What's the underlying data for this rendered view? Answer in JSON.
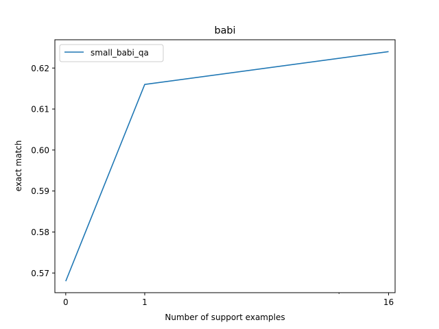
{
  "chart_data": {
    "type": "line",
    "title": "babi",
    "xlabel": "Number of support examples",
    "ylabel": "exact match",
    "x_scale": "symlog",
    "x_ticks": [
      0,
      1,
      16
    ],
    "x_tick_labels": [
      "0",
      "1",
      "16"
    ],
    "y_ticks": [
      0.57,
      0.58,
      0.59,
      0.6,
      0.61,
      0.62
    ],
    "y_tick_labels": [
      "0.57",
      "0.58",
      "0.59",
      "0.60",
      "0.61",
      "0.62"
    ],
    "xlim": [
      -0.1,
      17
    ],
    "ylim": [
      0.5652,
      0.6269
    ],
    "grid": false,
    "legend_position": "upper-left",
    "series": [
      {
        "name": "small_babi_qa",
        "x": [
          0,
          1,
          16
        ],
        "y": [
          0.568,
          0.616,
          0.624
        ],
        "color": "#1f77b4"
      }
    ]
  }
}
